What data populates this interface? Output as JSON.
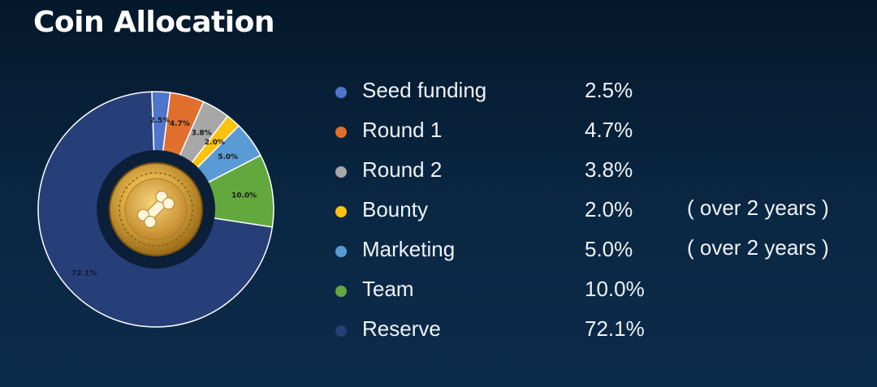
{
  "title": "Coin Allocation",
  "chart_data": {
    "type": "pie",
    "title": "Coin Allocation",
    "style": "donut",
    "series": [
      {
        "name": "Seed funding",
        "value": 2.5,
        "label": "2.5%",
        "color": "#4f75cc",
        "note": ""
      },
      {
        "name": "Round 1",
        "value": 4.7,
        "label": "4.7%",
        "color": "#e06e2c",
        "note": ""
      },
      {
        "name": "Round 2",
        "value": 3.8,
        "label": "3.8%",
        "color": "#a7a7a7",
        "note": ""
      },
      {
        "name": "Bounty",
        "value": 2.0,
        "label": "2.0%",
        "color": "#fdc20d",
        "note": "( over 2 years )"
      },
      {
        "name": "Marketing",
        "value": 5.0,
        "label": "5.0%",
        "color": "#5b9bd5",
        "note": "( over 2 years )"
      },
      {
        "name": "Team",
        "value": 10.0,
        "label": "10.0%",
        "color": "#63a83d",
        "note": ""
      },
      {
        "name": "Reserve",
        "value": 72.1,
        "label": "72.1%",
        "color": "#273f79",
        "note": ""
      }
    ]
  },
  "legend_values": [
    "2.5%",
    "4.7%",
    "3.8%",
    "2.0%",
    "5.0%",
    "10.0%",
    "72.1%"
  ],
  "center_icon": "gold-coin-bone-icon"
}
